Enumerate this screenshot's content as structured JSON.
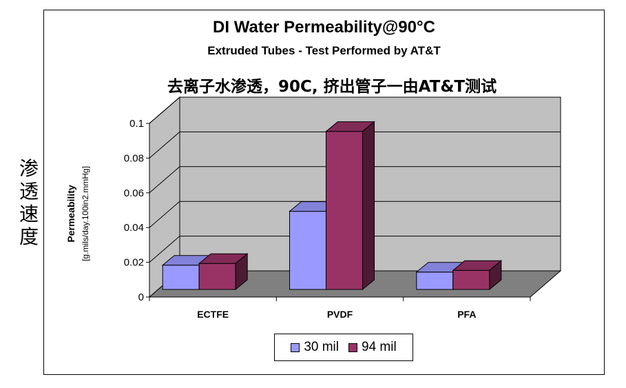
{
  "side_label": [
    "渗",
    "透",
    "速",
    "度"
  ],
  "chart_data": {
    "type": "bar",
    "title": "DI Water Permeability@90°C",
    "subtitle": "Extruded Tubes - Test Performed by AT&T",
    "annotation": "去离子水渗透，90C, 挤出管子一由AT&T测试",
    "ylabel_line1": "Permeability",
    "ylabel_line2": "[g.mils/day.100in2.mmHg]",
    "xlabel": "",
    "categories": [
      "ECTFE",
      "PVDF",
      "PFA"
    ],
    "series": [
      {
        "name": "30 mil",
        "values": [
          0.014,
          0.045,
          0.01
        ],
        "color": "#9999ff"
      },
      {
        "name": "94 mil",
        "values": [
          0.015,
          0.091,
          0.011
        ],
        "color": "#993366"
      }
    ],
    "ylim": [
      0,
      0.1
    ],
    "yticks": [
      "0",
      "0.02",
      "0.04",
      "0.06",
      "0.08",
      "0.1"
    ],
    "grid": true,
    "legend_position": "bottom",
    "wall_color": "#c0c0c0",
    "floor_color": "#808080"
  }
}
